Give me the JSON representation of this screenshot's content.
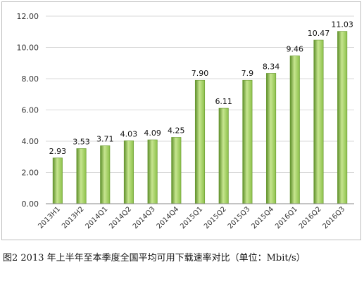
{
  "caption": "图2 2013 年上半年至本季度全国平均可用下载速率对比（单位：Mbit/s）",
  "chart_data": {
    "type": "bar",
    "categories": [
      "2013H1",
      "2013H2",
      "2014Q1",
      "2014Q2",
      "2014Q3",
      "2014Q4",
      "2015Q1",
      "2015Q2",
      "2015Q3",
      "2015Q4",
      "2016Q1",
      "2016Q2",
      "2016Q3"
    ],
    "values": [
      2.93,
      3.53,
      3.71,
      4.03,
      4.09,
      4.25,
      7.9,
      6.11,
      7.9,
      8.34,
      9.46,
      10.47,
      11.03
    ],
    "value_labels": [
      "2.93",
      "3.53",
      "3.71",
      "4.03",
      "4.09",
      "4.25",
      "7.90",
      "6.11",
      "7.9",
      "8.34",
      "9.46",
      "10.47",
      "11.03"
    ],
    "y_ticks": [
      "0.00",
      "2.00",
      "4.00",
      "6.00",
      "8.00",
      "10.00",
      "12.00"
    ],
    "ylim": [
      0,
      12
    ],
    "grid": true,
    "legend": "none",
    "bar_color": "#8cc04a",
    "bar_color_dark": "#5e8f2a",
    "bar_color_light": "#c6e58f"
  }
}
